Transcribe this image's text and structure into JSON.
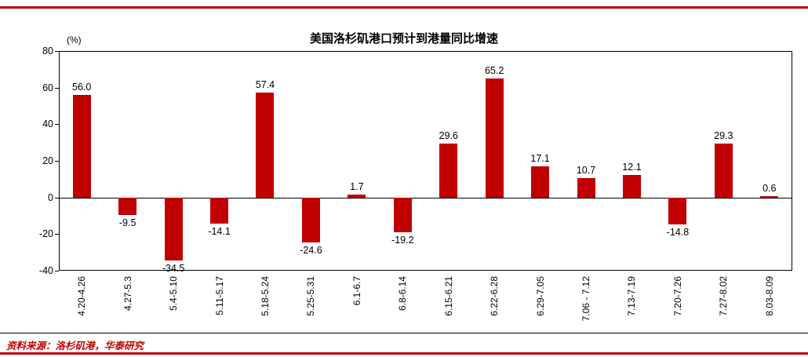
{
  "page": {
    "source_note": "资料来源：洛杉矶港，华泰研究"
  },
  "colors": {
    "brand_red": "#C00000",
    "source_text": "#C00000",
    "axis": "#000000"
  },
  "chart_data": {
    "type": "bar",
    "title": "美国洛杉矶港口预计到港量同比增速",
    "ylabel": "(%)",
    "ylim": [
      -40,
      80
    ],
    "yticks": [
      80,
      60,
      40,
      20,
      0,
      -20,
      -40
    ],
    "grid": false,
    "legend": "none",
    "bar_color": "#C00000",
    "categories": [
      "4.20-4.26",
      "4.27-5.3",
      "5.4-5.10",
      "5.11-5.17",
      "5.18-5.24",
      "5.25-5.31",
      "6.1-6.7",
      "6.8-6.14",
      "6.15-6.21",
      "6.22-6.28",
      "6.29-7.05",
      "7.06 - 7.12",
      "7.13-7.19",
      "7.20-7.26",
      "7.27-8.02",
      "8.03-8.09"
    ],
    "values": [
      56.0,
      -9.5,
      -34.5,
      -14.1,
      57.4,
      -24.6,
      1.7,
      -19.2,
      29.6,
      65.2,
      17.1,
      10.7,
      12.1,
      -14.8,
      29.3,
      0.6
    ]
  }
}
